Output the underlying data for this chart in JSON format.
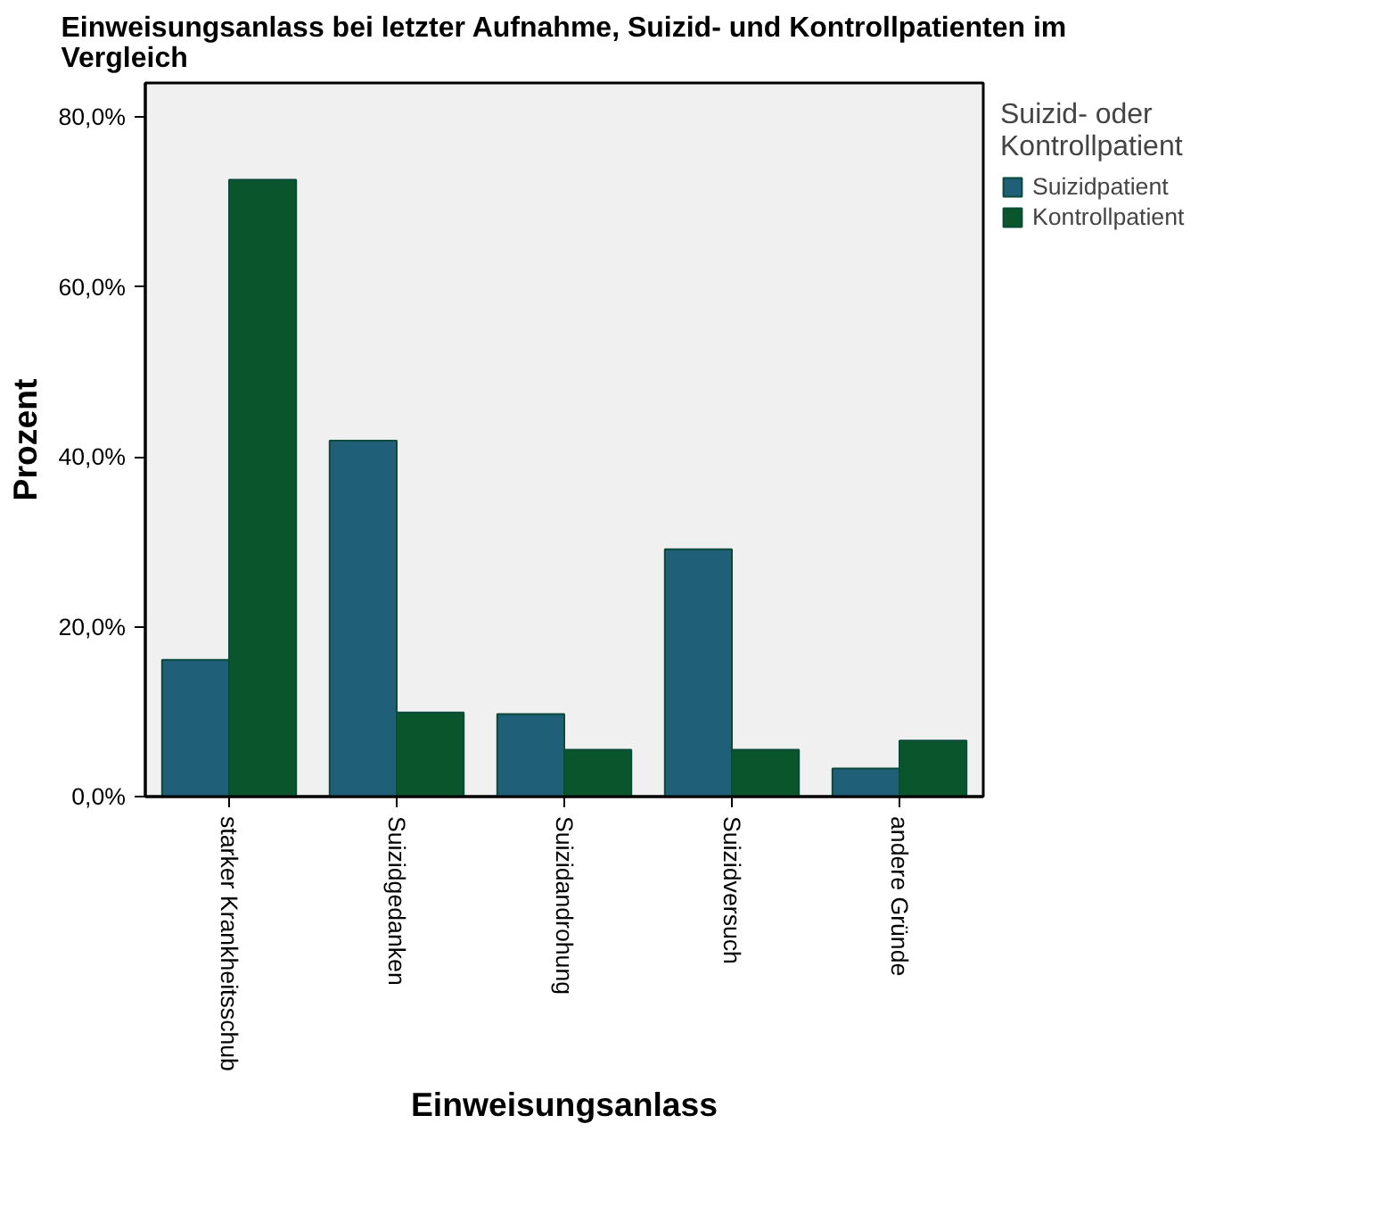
{
  "chart_data": {
    "type": "bar",
    "title": "Einweisungsanlass bei letzter Aufnahme, Suizid- und Kontrollpatienten im Vergleich",
    "xlabel": "Einweisungsanlass",
    "ylabel": "Prozent",
    "legend_title": "Suizid- oder Kontrollpatient",
    "categories": [
      "starker Krankheitsschub",
      "Suizidgedanken",
      "Suizidandrohung",
      "Suizidversuch",
      "andere Gründe"
    ],
    "series": [
      {
        "name": "Suizidpatient",
        "color": "#1f5f78",
        "values": [
          16.1,
          41.9,
          9.7,
          29.1,
          3.3
        ]
      },
      {
        "name": "Kontrollpatient",
        "color": "#0b552d",
        "values": [
          72.6,
          9.9,
          5.5,
          5.5,
          6.6
        ]
      }
    ],
    "ylim": [
      0,
      84
    ],
    "yticks": [
      {
        "value": 0,
        "label": "0,0%"
      },
      {
        "value": 20,
        "label": "20,0%"
      },
      {
        "value": 40,
        "label": "40,0%"
      },
      {
        "value": 60,
        "label": "60,0%"
      },
      {
        "value": 80,
        "label": "80,0%"
      }
    ],
    "grid": false,
    "legend": "right"
  }
}
